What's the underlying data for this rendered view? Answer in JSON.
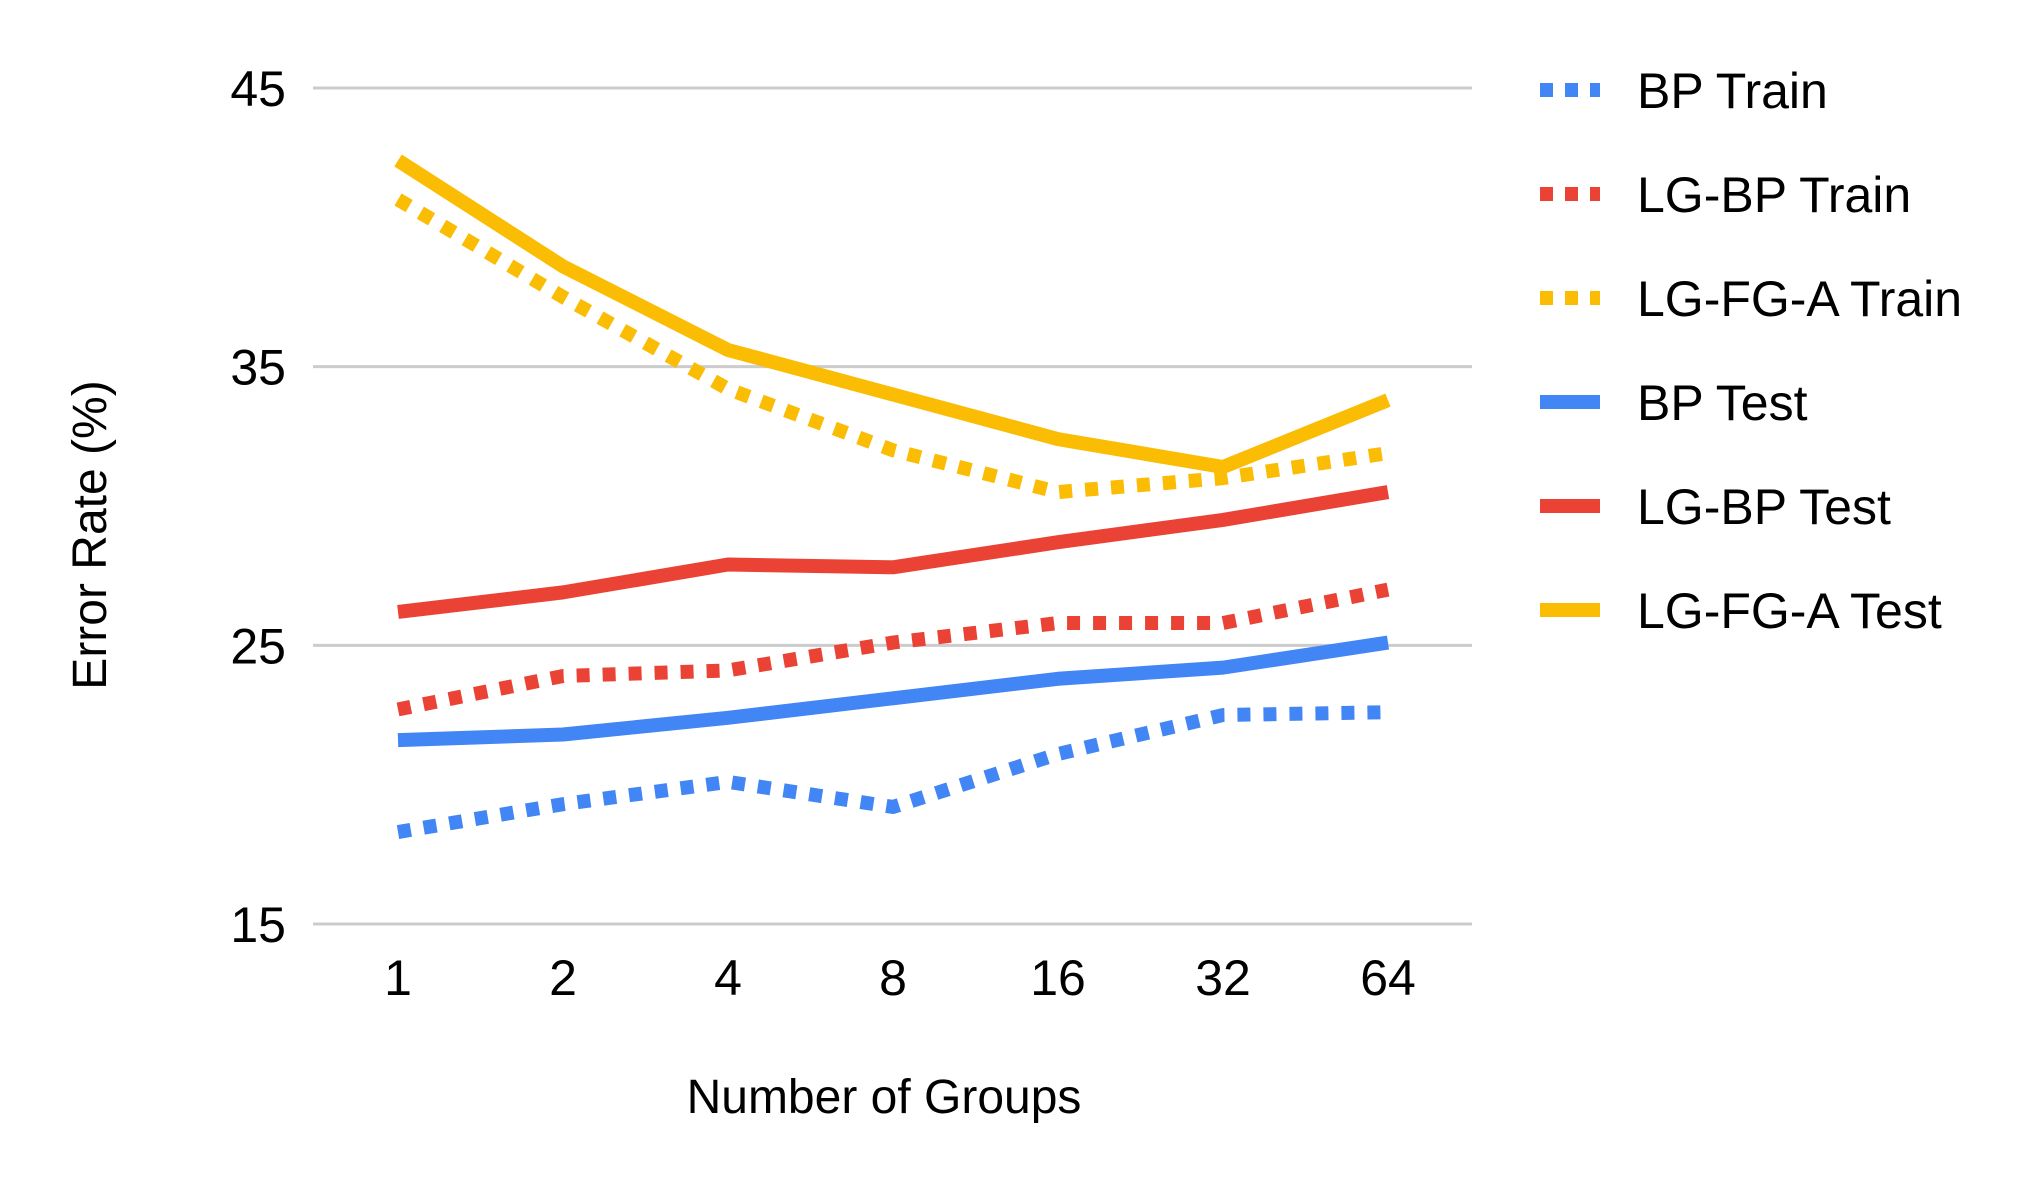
{
  "chart_data": {
    "type": "line",
    "categories": [
      "1",
      "2",
      "4",
      "8",
      "16",
      "32",
      "64"
    ],
    "xlabel": "Number of Groups",
    "ylabel": "Error Rate (%)",
    "ylim": [
      15,
      45
    ],
    "yticks": [
      "15",
      "25",
      "35",
      "45"
    ],
    "grid": true,
    "legend_position": "right",
    "series": [
      {
        "name": "BP Train",
        "color": "#4285f4",
        "style": "dotted",
        "values": [
          18.3,
          19.3,
          20.1,
          19.2,
          21.1,
          22.5,
          22.6
        ]
      },
      {
        "name": "LG-BP Train",
        "color": "#ea4335",
        "style": "dotted",
        "values": [
          22.7,
          23.9,
          24.1,
          25.1,
          25.8,
          25.8,
          27.0
        ]
      },
      {
        "name": "LG-FG-A Train",
        "color": "#fbbc04",
        "style": "dotted",
        "values": [
          41.0,
          37.5,
          34.2,
          32.0,
          30.5,
          31.0,
          31.9
        ]
      },
      {
        "name": "BP Test",
        "color": "#4285f4",
        "style": "solid",
        "values": [
          21.6,
          21.8,
          22.4,
          23.1,
          23.8,
          24.2,
          25.1
        ]
      },
      {
        "name": "LG-BP Test",
        "color": "#ea4335",
        "style": "solid",
        "values": [
          26.2,
          26.9,
          27.9,
          27.8,
          28.7,
          29.5,
          30.5
        ]
      },
      {
        "name": "LG-FG-A Test",
        "color": "#fbbc04",
        "style": "solid",
        "values": [
          42.4,
          38.6,
          35.6,
          34.0,
          32.4,
          31.4,
          33.8
        ]
      }
    ]
  }
}
